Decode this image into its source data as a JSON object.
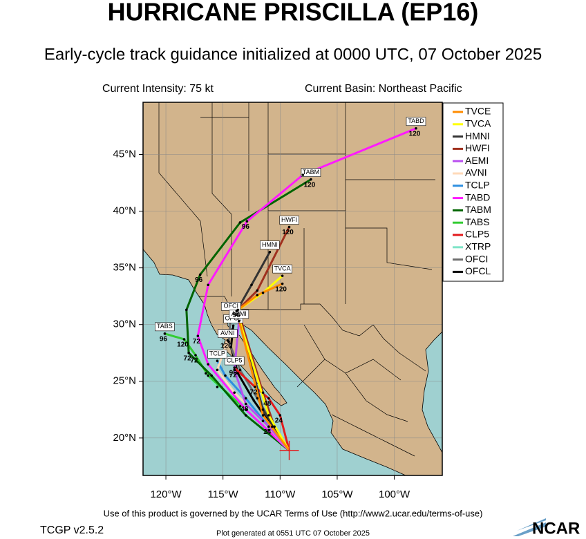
{
  "chart_data": {
    "type": "track",
    "title": "HURRICANE PRISCILLA (EP16)",
    "subtitle": "Early-cycle track guidance initialized at 0000 UTC, 07 October 2025",
    "intensity": "Current Intensity: 75 kt",
    "basin": "Current Basin: Northeast Pacific",
    "footer": "Use of this product is governed by the UCAR Terms of Use (http://www2.ucar.edu/terms-of-use)",
    "version": "TCGP v2.5.2",
    "generated": "Plot generated at 0551 UTC   07 October 2025",
    "logo": "NCAR",
    "xlim": [
      -122,
      -95.8
    ],
    "ylim": [
      16.7,
      49.6
    ],
    "xticks": [
      {
        "value": -120,
        "label": "120°W"
      },
      {
        "value": -115,
        "label": "115°W"
      },
      {
        "value": -110,
        "label": "110°W"
      },
      {
        "value": -105,
        "label": "105°W"
      },
      {
        "value": -100,
        "label": "100°W"
      }
    ],
    "yticks": [
      {
        "value": 20,
        "label": "20°N"
      },
      {
        "value": 25,
        "label": "25°N"
      },
      {
        "value": 30,
        "label": "30°N"
      },
      {
        "value": 35,
        "label": "35°N"
      },
      {
        "value": 40,
        "label": "40°N"
      },
      {
        "value": 45,
        "label": "45°N"
      }
    ],
    "grid": true,
    "legend": "top-right",
    "series": [
      {
        "name": "TVCE",
        "color": "#ff8c00",
        "end_label": false,
        "x": [
          -109.2,
          -111.5,
          -113.8,
          -112,
          -109.8
        ],
        "y": [
          18.9,
          22,
          31.2,
          32.6,
          33.6
        ],
        "hour_labels": [
          null,
          null,
          null,
          null,
          "120"
        ]
      },
      {
        "name": "TVCA",
        "color": "#ffff00",
        "end_label": true,
        "x": [
          -109.2,
          -111,
          -113.8,
          -111.5,
          -109.8
        ],
        "y": [
          18.9,
          22,
          31.2,
          32.8,
          34.3
        ],
        "hour_labels": [
          null,
          null,
          null,
          null,
          null
        ]
      },
      {
        "name": "HMNI",
        "color": "#333333",
        "end_label": true,
        "x": [
          -109.2,
          -111.5,
          -113.8,
          -112.5,
          -110.9
        ],
        "y": [
          18.9,
          22.5,
          31.2,
          33.5,
          36.4
        ],
        "hour_labels": [
          null,
          null,
          null,
          null,
          null
        ]
      },
      {
        "name": "HWFI",
        "color": "#a0301e",
        "end_label": true,
        "x": [
          -109.2,
          -110.5,
          -111.5,
          -113.7,
          -112,
          -109.2
        ],
        "y": [
          18.9,
          21,
          24,
          31.3,
          33,
          38.6
        ],
        "hour_labels": [
          null,
          null,
          null,
          "96",
          null,
          "120"
        ]
      },
      {
        "name": "AEMI",
        "color": "#b94ff0",
        "end_label": true,
        "x": [
          -109.2,
          -111,
          -113,
          -114,
          -113.6
        ],
        "y": [
          18.9,
          21,
          23,
          26,
          30.3
        ],
        "hour_labels": [
          null,
          "24",
          "48",
          "72",
          null
        ]
      },
      {
        "name": "AVNI",
        "color": "#ffdab9",
        "end_label": true,
        "x": [
          -109.2,
          -111.5,
          -114,
          -115.5,
          -114.6
        ],
        "y": [
          18.9,
          21.5,
          24,
          26,
          28.6
        ],
        "hour_labels": [
          null,
          null,
          null,
          null,
          "120"
        ]
      },
      {
        "name": "TCLP",
        "color": "#2e8fe0",
        "end_label": true,
        "x": [
          -109.2,
          -111,
          -113,
          -114.8,
          -115.5
        ],
        "y": [
          18.9,
          21,
          23.5,
          25.5,
          26.8
        ],
        "hour_labels": [
          null,
          null,
          null,
          null,
          null
        ]
      },
      {
        "name": "TABD",
        "color": "#ff1aff",
        "end_label": true,
        "x": [
          -109.2,
          -113,
          -116.3,
          -117.2,
          -116.3,
          -112.9,
          -108,
          -98.1
        ],
        "y": [
          18.9,
          22.5,
          26.5,
          29,
          33.5,
          39.1,
          43.2,
          47.3
        ],
        "hour_labels": [
          null,
          null,
          null,
          "72",
          null,
          "96",
          null,
          "120"
        ]
      },
      {
        "name": "TABM",
        "color": "#006400",
        "end_label": true,
        "x": [
          -109.2,
          -113,
          -116,
          -118,
          -118.2,
          -117,
          -113.5,
          -107.3
        ],
        "y": [
          18.9,
          22,
          25.5,
          27.5,
          31.3,
          34.4,
          39,
          42.8
        ],
        "hour_labels": [
          null,
          null,
          null,
          "72",
          null,
          "96",
          null,
          "120"
        ]
      },
      {
        "name": "TABS",
        "color": "#33cc33",
        "end_label": true,
        "x": [
          -109.2,
          -113,
          -116.3,
          -117.4,
          -118.4,
          -120.1
        ],
        "y": [
          18.9,
          22.5,
          25.5,
          27.3,
          28.7,
          29.2
        ],
        "hour_labels": [
          null,
          null,
          null,
          "72",
          "120",
          "96"
        ]
      },
      {
        "name": "CLP5",
        "color": "#e31a1c",
        "end_label": true,
        "x": [
          -109.2,
          -110,
          -111,
          -112.2,
          -114
        ],
        "y": [
          18.9,
          22,
          23.5,
          24.5,
          26.2
        ],
        "hour_labels": [
          null,
          "24",
          "48",
          "72",
          "96"
        ]
      },
      {
        "name": "XTRP",
        "color": "#7fe5c8",
        "end_label": false,
        "x": [
          -109.2,
          -111,
          -113.5,
          -115.5,
          -116.5
        ],
        "y": [
          18.9,
          20.7,
          22.8,
          24.5,
          25.7
        ],
        "hour_labels": [
          null,
          null,
          null,
          null,
          null
        ]
      },
      {
        "name": "OFCI",
        "color": "#6e6e6e",
        "end_label": true,
        "x": [
          -109.2,
          -110.5,
          -112,
          -113.5,
          -114.5,
          -114.3
        ],
        "y": [
          18.9,
          21,
          23.5,
          26,
          28.5,
          31
        ],
        "hour_labels": [
          null,
          null,
          null,
          null,
          null,
          null
        ]
      },
      {
        "name": "OFCL",
        "color": "#000000",
        "end_label": true,
        "x": [
          -109.2,
          -110.7,
          -112.3,
          -113.7,
          -114.3,
          -114.1
        ],
        "y": [
          18.9,
          21,
          23.3,
          25.7,
          28,
          29.9
        ],
        "hour_labels": [
          null,
          null,
          null,
          null,
          null,
          null
        ]
      }
    ]
  }
}
